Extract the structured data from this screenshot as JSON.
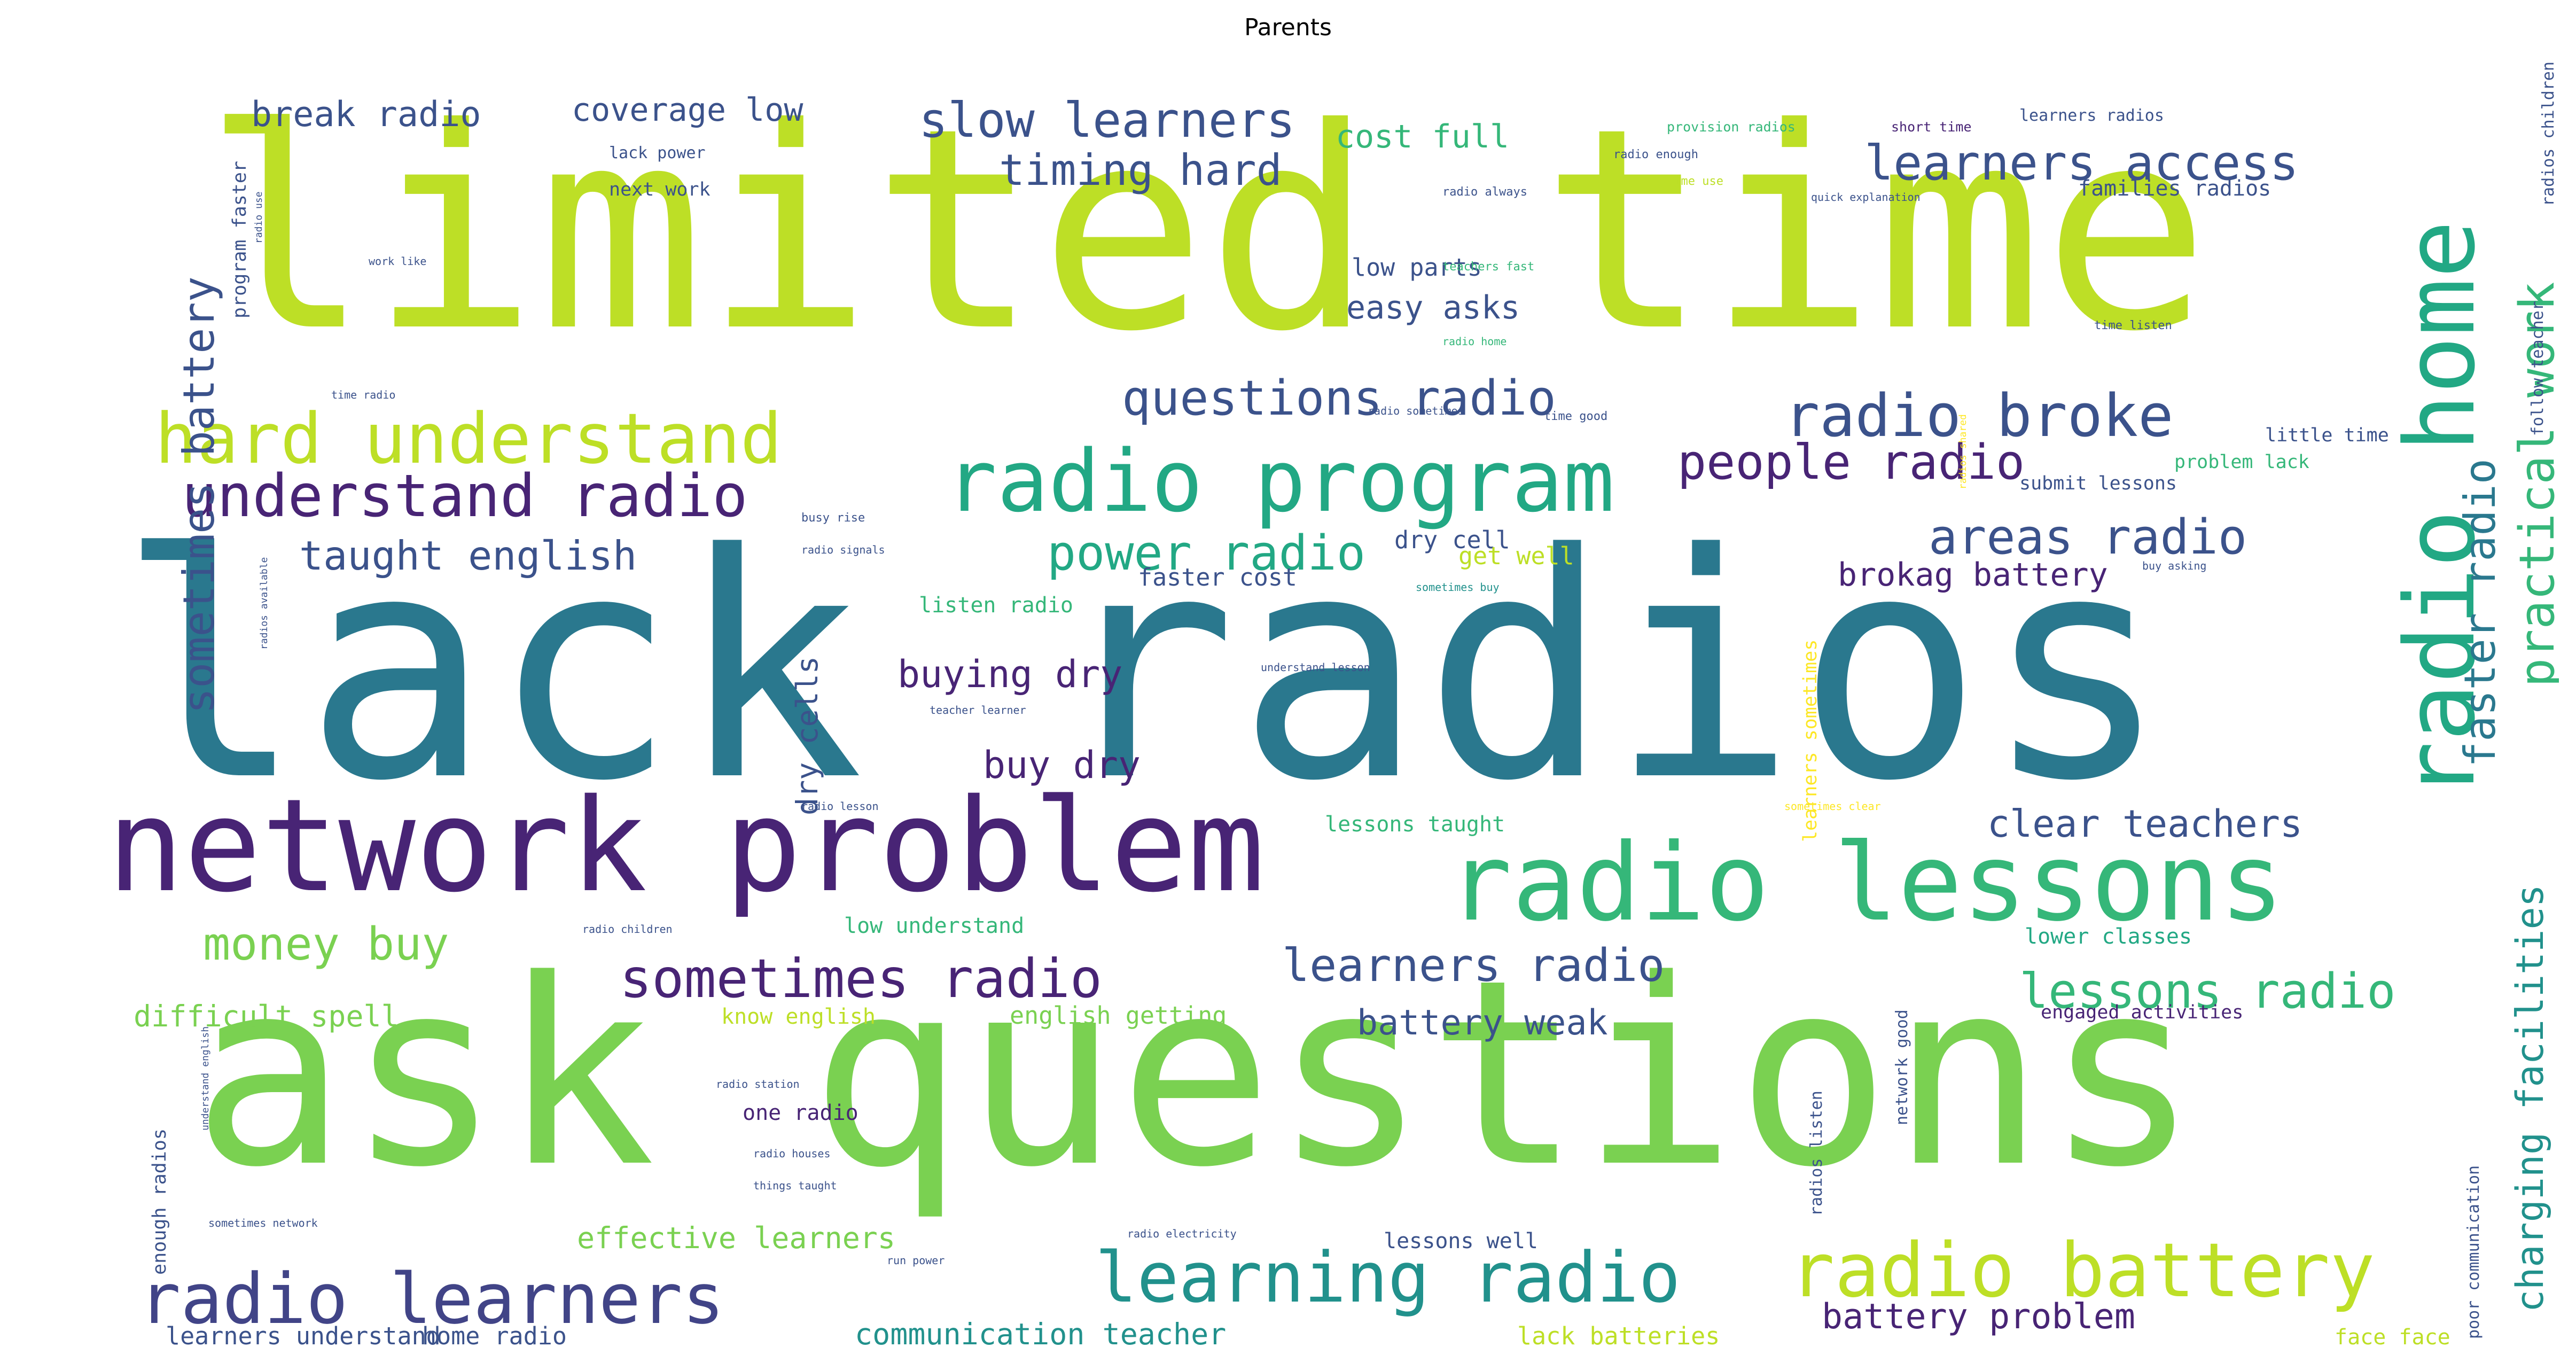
{
  "title": "Parents",
  "palette": {
    "yellow_green": "#bddf26",
    "teal": "#2a788e",
    "light_green": "#7ad151",
    "dark_purple": "#482475",
    "green": "#35b779",
    "sea_green": "#22a884",
    "blue_grey": "#414487",
    "slate": "#3b528b",
    "cyan": "#21918c",
    "yellow": "#fde725"
  },
  "words": [
    {
      "text": "limited time",
      "color": "#bddf26"
    },
    {
      "text": "lack radios",
      "color": "#2a788e"
    },
    {
      "text": "ask questions",
      "color": "#7ad151"
    },
    {
      "text": "network problem",
      "color": "#482475"
    },
    {
      "text": "radio lessons",
      "color": "#35b779"
    },
    {
      "text": "radio home",
      "color": "#22a884"
    },
    {
      "text": "radio program",
      "color": "#22a884"
    },
    {
      "text": "hard understand",
      "color": "#bddf26"
    },
    {
      "text": "understand radio",
      "color": "#482475"
    },
    {
      "text": "radio learners",
      "color": "#414487"
    },
    {
      "text": "learning radio",
      "color": "#21918c"
    },
    {
      "text": "radio battery",
      "color": "#bddf26"
    },
    {
      "text": "sometimes radio",
      "color": "#482475"
    },
    {
      "text": "radio broke",
      "color": "#3b528b"
    },
    {
      "text": "people radio",
      "color": "#482475"
    },
    {
      "text": "power radio",
      "color": "#22a884"
    },
    {
      "text": "areas radio",
      "color": "#3b528b"
    },
    {
      "text": "questions radio",
      "color": "#3b528b"
    },
    {
      "text": "learners access",
      "color": "#3b528b"
    },
    {
      "text": "slow learners",
      "color": "#3b528b"
    },
    {
      "text": "timing hard",
      "color": "#3b528b"
    },
    {
      "text": "learners radio",
      "color": "#3b528b"
    },
    {
      "text": "lessons radio",
      "color": "#35b779"
    },
    {
      "text": "money buy",
      "color": "#7ad151"
    },
    {
      "text": "practical work",
      "color": "#35b779"
    },
    {
      "text": "faster radio",
      "color": "#2a788e"
    },
    {
      "text": "sometimes battery",
      "color": "#3b528b"
    },
    {
      "text": "taught english",
      "color": "#3b528b"
    },
    {
      "text": "charging facilities",
      "color": "#21918c"
    },
    {
      "text": "clear teachers",
      "color": "#3b528b"
    },
    {
      "text": "break radio",
      "color": "#3b528b"
    },
    {
      "text": "coverage low",
      "color": "#3b528b"
    },
    {
      "text": "cost full",
      "color": "#35b779"
    },
    {
      "text": "easy asks",
      "color": "#3b528b"
    },
    {
      "text": "buying dry",
      "color": "#482475"
    },
    {
      "text": "buy dry",
      "color": "#482475"
    },
    {
      "text": "brokag battery",
      "color": "#482475"
    },
    {
      "text": "battery weak",
      "color": "#3b528b"
    },
    {
      "text": "battery problem",
      "color": "#482475"
    },
    {
      "text": "difficult spell",
      "color": "#7ad151"
    },
    {
      "text": "effective learners",
      "color": "#7ad151"
    },
    {
      "text": "communication teacher",
      "color": "#21918c"
    },
    {
      "text": "learners understand",
      "color": "#3b528b"
    },
    {
      "text": "home radio",
      "color": "#3b528b"
    },
    {
      "text": "lack batteries",
      "color": "#bddf26"
    },
    {
      "text": "face face",
      "color": "#bddf26"
    },
    {
      "text": "dry cells",
      "color": "#3b528b"
    },
    {
      "text": "dry cell",
      "color": "#3b528b"
    },
    {
      "text": "low parts",
      "color": "#3b528b"
    },
    {
      "text": "get well",
      "color": "#bddf26"
    },
    {
      "text": "faster cost",
      "color": "#3b528b"
    },
    {
      "text": "listen radio",
      "color": "#35b779"
    },
    {
      "text": "lessons taught",
      "color": "#35b779"
    },
    {
      "text": "low understand",
      "color": "#35b779"
    },
    {
      "text": "lower classes",
      "color": "#22a884"
    },
    {
      "text": "engaged activities",
      "color": "#482475"
    },
    {
      "text": "know english",
      "color": "#bddf26"
    },
    {
      "text": "english getting",
      "color": "#7ad151"
    },
    {
      "text": "one radio",
      "color": "#482475"
    },
    {
      "text": "lessons well",
      "color": "#3b528b"
    },
    {
      "text": "little time",
      "color": "#3b528b"
    },
    {
      "text": "problem lack",
      "color": "#35b779"
    },
    {
      "text": "submit lessons",
      "color": "#3b528b"
    },
    {
      "text": "program faster",
      "color": "#3b528b"
    },
    {
      "text": "families radios",
      "color": "#3b528b"
    },
    {
      "text": "follow teacher",
      "color": "#3b528b"
    },
    {
      "text": "radios children",
      "color": "#3b528b"
    },
    {
      "text": "enough radios",
      "color": "#3b528b"
    },
    {
      "text": "poor communication",
      "color": "#3b528b"
    },
    {
      "text": "learners sometimes",
      "color": "#fde725"
    },
    {
      "text": "network good",
      "color": "#3b528b"
    },
    {
      "text": "radios listen",
      "color": "#3b528b"
    },
    {
      "text": "provision radios",
      "color": "#35b779"
    },
    {
      "text": "short time",
      "color": "#482475"
    },
    {
      "text": "learners radios",
      "color": "#3b528b"
    },
    {
      "text": "lack power",
      "color": "#3b528b"
    },
    {
      "text": "next work",
      "color": "#3b528b"
    },
    {
      "text": "radio enough",
      "color": "#3b528b"
    },
    {
      "text": "time use",
      "color": "#bddf26"
    },
    {
      "text": "radio always",
      "color": "#3b528b"
    },
    {
      "text": "quick explanation",
      "color": "#3b528b"
    },
    {
      "text": "teachers fast",
      "color": "#35b779"
    },
    {
      "text": "radio home",
      "color": "#35b779"
    },
    {
      "text": "time listen",
      "color": "#3b528b"
    },
    {
      "text": "work like",
      "color": "#3b528b"
    },
    {
      "text": "radio use",
      "color": "#3b528b"
    },
    {
      "text": "time radio",
      "color": "#3b528b"
    },
    {
      "text": "radio sometimes",
      "color": "#3b528b"
    },
    {
      "text": "time good",
      "color": "#3b528b"
    },
    {
      "text": "busy rise",
      "color": "#3b528b"
    },
    {
      "text": "radio signals",
      "color": "#3b528b"
    },
    {
      "text": "sometimes buy",
      "color": "#21918c"
    },
    {
      "text": "buy asking",
      "color": "#3b528b"
    },
    {
      "text": "understand lesson",
      "color": "#3b528b"
    },
    {
      "text": "teacher learner",
      "color": "#3b528b"
    },
    {
      "text": "radio lesson",
      "color": "#3b528b"
    },
    {
      "text": "sometimes clear",
      "color": "#fde725"
    },
    {
      "text": "radio children",
      "color": "#3b528b"
    },
    {
      "text": "radio station",
      "color": "#3b528b"
    },
    {
      "text": "radio houses",
      "color": "#3b528b"
    },
    {
      "text": "things taught",
      "color": "#3b528b"
    },
    {
      "text": "sometimes network",
      "color": "#3b528b"
    },
    {
      "text": "radio electricity",
      "color": "#3b528b"
    },
    {
      "text": "run power",
      "color": "#3b528b"
    },
    {
      "text": "understand english",
      "color": "#3b528b"
    },
    {
      "text": "radios available",
      "color": "#3b528b"
    },
    {
      "text": "radios shared",
      "color": "#fde725"
    }
  ]
}
